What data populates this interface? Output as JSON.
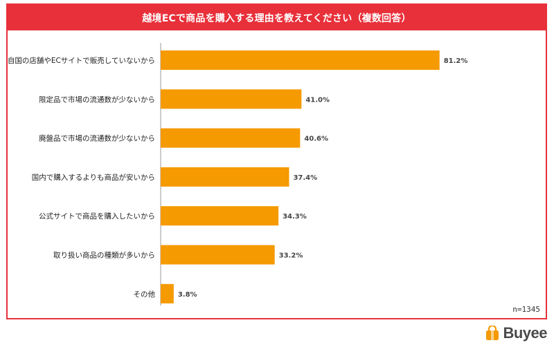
{
  "colors": {
    "accent": "#e8303a",
    "bar": "#f59a00"
  },
  "title": "越境ECで商品を購入する理由を教えてください（複数回答）",
  "n_label": "n=1345",
  "logo": {
    "text": "Buyee",
    "icon": "shopping-bag-icon"
  },
  "chart_data": {
    "type": "bar",
    "orientation": "horizontal",
    "title": "越境ECで商品を購入する理由を教えてください（複数回答）",
    "xlabel": "",
    "ylabel": "",
    "unit": "%",
    "xlim": [
      0,
      100
    ],
    "grid": false,
    "categories": [
      "自国の店舗やECサイトで販売していないから",
      "限定品で市場の流通数が少ないから",
      "廃盤品で市場の流通数が少ないから",
      "国内で購入するよりも商品が安いから",
      "公式サイトで商品を購入したいから",
      "取り扱い商品の種類が多いから",
      "その他"
    ],
    "values": [
      81.2,
      41.0,
      40.6,
      37.4,
      34.3,
      33.2,
      3.8
    ],
    "value_labels": [
      "81.2%",
      "41.0%",
      "40.6%",
      "37.4%",
      "34.3%",
      "33.2%",
      "3.8%"
    ]
  }
}
